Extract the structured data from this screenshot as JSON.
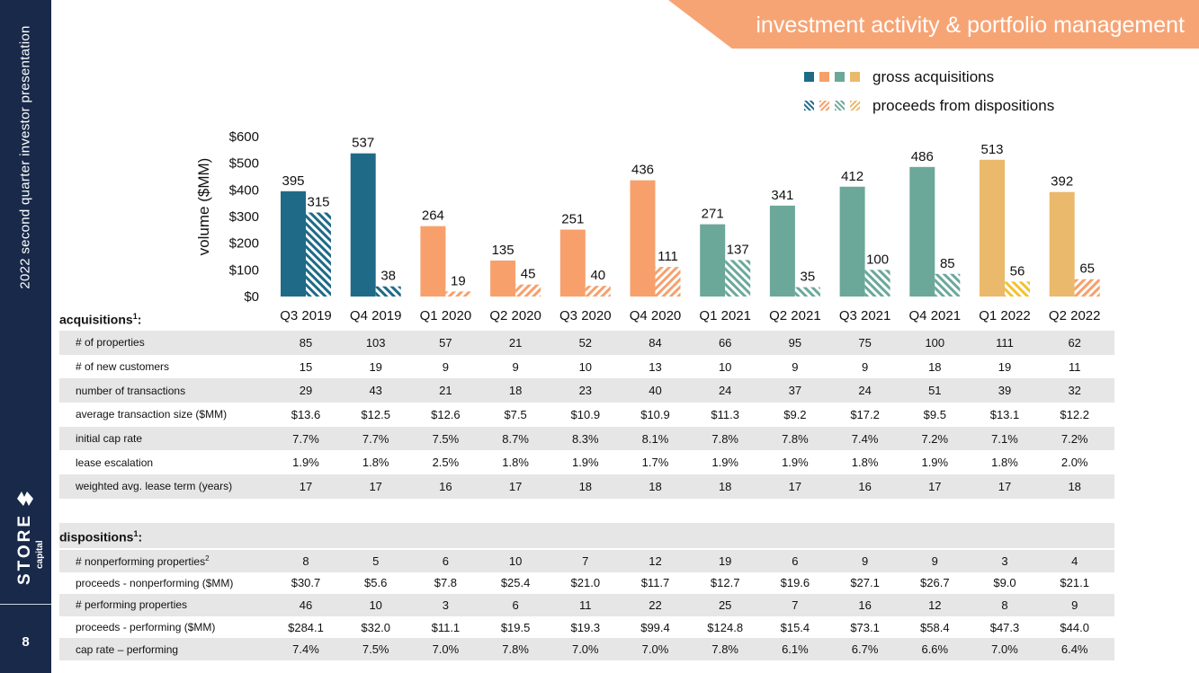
{
  "sidebar": {
    "title": "2022 second quarter investor presentation",
    "logo_word": "STORE",
    "logo_sub": "capital",
    "page_number": "8"
  },
  "header": {
    "title": "investment activity & portfolio management"
  },
  "legend": {
    "gross": "gross acquisitions",
    "dispositions": "proceeds from dispositions"
  },
  "colors": {
    "teal_dark": "#1f6b87",
    "orange": "#f7a06c",
    "sage": "#6ba89a",
    "gold": "#eab96c",
    "yellow": "#f2c12e",
    "sidebar": "#18294a",
    "banner": "#f7a475",
    "shade": "#e6e6e6"
  },
  "chart_data": {
    "type": "bar",
    "title": "",
    "xlabel": "",
    "ylabel": "volume ($MM)",
    "ylim": [
      0,
      600
    ],
    "yticks": [
      "$0",
      "$100",
      "$200",
      "$300",
      "$400",
      "$500",
      "$600"
    ],
    "categories": [
      "Q3 2019",
      "Q4 2019",
      "Q1 2020",
      "Q2 2020",
      "Q3 2020",
      "Q4 2020",
      "Q1 2021",
      "Q2 2021",
      "Q3 2021",
      "Q4 2021",
      "Q1 2022",
      "Q2 2022"
    ],
    "series": [
      {
        "name": "gross acquisitions",
        "values": [
          395,
          537,
          264,
          135,
          251,
          436,
          271,
          341,
          412,
          486,
          513,
          392
        ]
      },
      {
        "name": "proceeds from dispositions",
        "values": [
          315,
          38,
          19,
          45,
          40,
          111,
          137,
          35,
          100,
          85,
          56,
          65
        ]
      }
    ],
    "bar_colors": [
      "#1f6b87",
      "#1f6b87",
      "#f7a06c",
      "#f7a06c",
      "#f7a06c",
      "#f7a06c",
      "#6ba89a",
      "#6ba89a",
      "#6ba89a",
      "#6ba89a",
      "#eab96c",
      "#eab96c"
    ],
    "disp_colors": [
      "#1f6b87",
      "#1f6b87",
      "#f7a06c",
      "#f7a06c",
      "#f7a06c",
      "#f7a06c",
      "#6ba89a",
      "#6ba89a",
      "#6ba89a",
      "#6ba89a",
      "#f2c12e",
      "#f7a06c"
    ]
  },
  "acquisitions": {
    "title": "acquisitions",
    "footnote": "1",
    "rows": [
      {
        "label": "# of properties",
        "values": [
          "85",
          "103",
          "57",
          "21",
          "52",
          "84",
          "66",
          "95",
          "75",
          "100",
          "111",
          "62"
        ]
      },
      {
        "label": "# of new customers",
        "values": [
          "15",
          "19",
          "9",
          "9",
          "10",
          "13",
          "10",
          "9",
          "9",
          "18",
          "19",
          "11"
        ]
      },
      {
        "label": "number of transactions",
        "values": [
          "29",
          "43",
          "21",
          "18",
          "23",
          "40",
          "24",
          "37",
          "24",
          "51",
          "39",
          "32"
        ]
      },
      {
        "label": "average transaction size ($MM)",
        "values": [
          "$13.6",
          "$12.5",
          "$12.6",
          "$7.5",
          "$10.9",
          "$10.9",
          "$11.3",
          "$9.2",
          "$17.2",
          "$9.5",
          "$13.1",
          "$12.2"
        ]
      },
      {
        "label": "initial cap rate",
        "values": [
          "7.7%",
          "7.7%",
          "7.5%",
          "8.7%",
          "8.3%",
          "8.1%",
          "7.8%",
          "7.8%",
          "7.4%",
          "7.2%",
          "7.1%",
          "7.2%"
        ]
      },
      {
        "label": "lease escalation",
        "values": [
          "1.9%",
          "1.8%",
          "2.5%",
          "1.8%",
          "1.9%",
          "1.7%",
          "1.9%",
          "1.9%",
          "1.8%",
          "1.9%",
          "1.8%",
          "2.0%"
        ]
      },
      {
        "label": "weighted avg. lease term (years)",
        "values": [
          "17",
          "17",
          "16",
          "17",
          "18",
          "18",
          "18",
          "17",
          "16",
          "17",
          "17",
          "18"
        ]
      }
    ]
  },
  "dispositions": {
    "title": "dispositions",
    "footnote": "1",
    "rows": [
      {
        "label": "# nonperforming properties",
        "sup": "2",
        "values": [
          "8",
          "5",
          "6",
          "10",
          "7",
          "12",
          "19",
          "6",
          "9",
          "9",
          "3",
          "4"
        ]
      },
      {
        "label": "proceeds - nonperforming ($MM)",
        "sup": "",
        "values": [
          "$30.7",
          "$5.6",
          "$7.8",
          "$25.4",
          "$21.0",
          "$11.7",
          "$12.7",
          "$19.6",
          "$27.1",
          "$26.7",
          "$9.0",
          "$21.1"
        ]
      },
      {
        "label": "# performing properties",
        "sup": "",
        "values": [
          "46",
          "10",
          "3",
          "6",
          "11",
          "22",
          "25",
          "7",
          "16",
          "12",
          "8",
          "9"
        ]
      },
      {
        "label": "proceeds - performing ($MM)",
        "sup": "",
        "values": [
          "$284.1",
          "$32.0",
          "$11.1",
          "$19.5",
          "$19.3",
          "$99.4",
          "$124.8",
          "$15.4",
          "$73.1",
          "$58.4",
          "$47.3",
          "$44.0"
        ]
      },
      {
        "label": "cap rate – performing",
        "sup": "",
        "values": [
          "7.4%",
          "7.5%",
          "7.0%",
          "7.8%",
          "7.0%",
          "7.0%",
          "7.8%",
          "6.1%",
          "6.7%",
          "6.6%",
          "7.0%",
          "6.4%"
        ]
      }
    ]
  }
}
